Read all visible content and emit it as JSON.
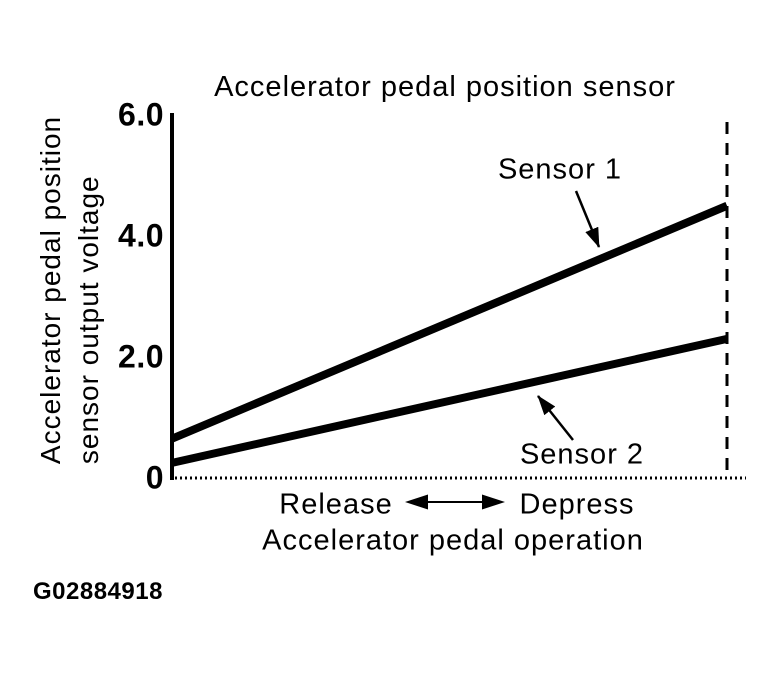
{
  "figure": {
    "id_label": "G02884918"
  },
  "chart_data": {
    "type": "line",
    "title": "Accelerator pedal position sensor",
    "xlabel": "Accelerator pedal operation",
    "ylabel": "Accelerator pedal position sensor output voltage",
    "ylabel_lines": [
      "Accelerator pedal position",
      "sensor output voltage"
    ],
    "x_axis": {
      "kind": "qualitative",
      "min_label": "Release",
      "max_label": "Depress",
      "range": [
        0,
        1
      ]
    },
    "y_axis": {
      "unit": "V",
      "lim": [
        0,
        6
      ],
      "ticks": [
        {
          "value": 0,
          "label": "0"
        },
        {
          "value": 2,
          "label": "2.0"
        },
        {
          "value": 4,
          "label": "4.0"
        },
        {
          "value": 6,
          "label": "6.0"
        }
      ]
    },
    "series": [
      {
        "name": "Sensor 1",
        "points": [
          {
            "x": 0,
            "v": 0.65
          },
          {
            "x": 1,
            "v": 4.5
          }
        ]
      },
      {
        "name": "Sensor 2",
        "points": [
          {
            "x": 0,
            "v": 0.25
          },
          {
            "x": 1,
            "v": 2.3
          }
        ]
      }
    ],
    "full_depress_guide": {
      "style": "dashed",
      "x": 1
    },
    "grid": false,
    "legend": "inline-annotations",
    "ink_color": "#000000",
    "background_color": "#ffffff"
  }
}
